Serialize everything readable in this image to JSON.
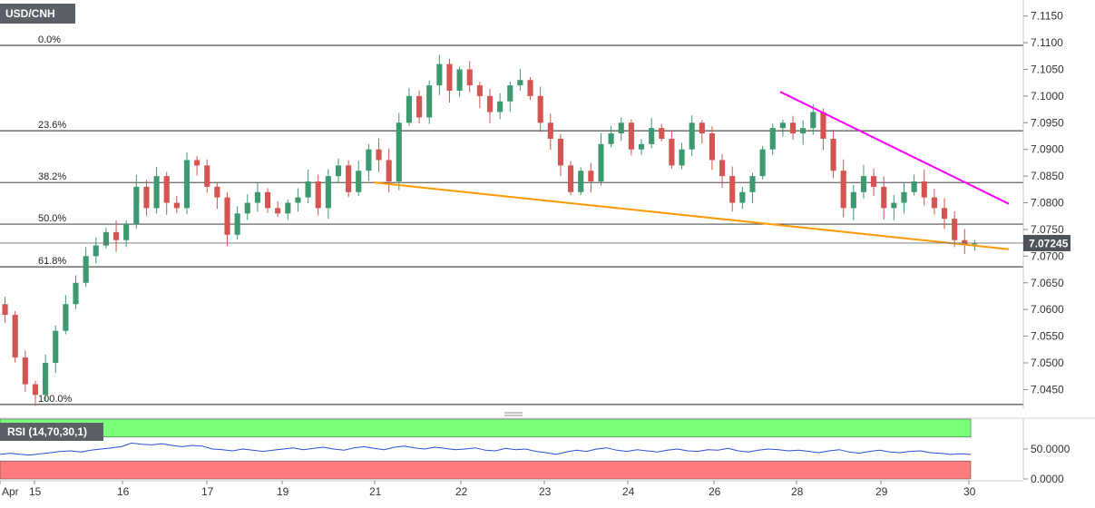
{
  "chart_data": [
    {
      "type": "candlestick",
      "symbol": "USD/CNH",
      "last_price": "7.07245",
      "y_axis_ticks": [
        "7.1150",
        "7.1100",
        "7.1050",
        "7.1000",
        "7.0950",
        "7.0900",
        "7.0850",
        "7.0800",
        "7.0750",
        "7.0700",
        "7.0650",
        "7.0600",
        "7.0550",
        "7.0500",
        "7.0450"
      ],
      "ylim": [
        7.0415,
        7.118
      ],
      "x_ticks": [
        "Apr",
        "15",
        "16",
        "17",
        "19",
        "21",
        "22",
        "23",
        "24",
        "26",
        "28",
        "29",
        "30"
      ],
      "fibonacci": [
        {
          "label": "0.0%",
          "value": 7.1095
        },
        {
          "label": "23.6%",
          "value": 7.0935
        },
        {
          "label": "38.2%",
          "value": 7.0838
        },
        {
          "label": "50.0%",
          "value": 7.076
        },
        {
          "label": "61.8%",
          "value": 7.068
        },
        {
          "label": "100.0%",
          "value": 7.0422
        }
      ],
      "trendlines": [
        {
          "color": "#ff9900",
          "from": {
            "day": "21",
            "value": 7.0838
          },
          "to": {
            "day": "30+",
            "value": 7.0713
          }
        },
        {
          "color": "#ff00ff",
          "from": {
            "day": "27-28",
            "value": 7.1008
          },
          "to": {
            "day": "30+",
            "value": 7.0798
          }
        }
      ],
      "ohlc_close_path": [
        7.059,
        7.051,
        7.046,
        7.044,
        7.05,
        7.056,
        7.061,
        7.065,
        7.07,
        7.072,
        7.0745,
        7.073,
        7.076,
        7.083,
        7.079,
        7.085,
        7.08,
        7.079,
        7.088,
        7.087,
        7.083,
        7.081,
        7.074,
        7.078,
        7.08,
        7.082,
        7.079,
        7.078,
        7.08,
        7.081,
        7.084,
        7.079,
        7.085,
        7.087,
        7.082,
        7.086,
        7.09,
        7.088,
        7.084,
        7.095,
        7.1,
        7.096,
        7.102,
        7.106,
        7.101,
        7.105,
        7.102,
        7.1,
        7.097,
        7.099,
        7.102,
        7.103,
        7.1,
        7.095,
        7.092,
        7.087,
        7.082,
        7.086,
        7.084,
        7.091,
        7.093,
        7.095,
        7.09,
        7.091,
        7.094,
        7.092,
        7.087,
        7.09,
        7.095,
        7.093,
        7.088,
        7.085,
        7.08,
        7.082,
        7.085,
        7.09,
        7.094,
        7.095,
        7.093,
        7.094,
        7.097,
        7.092,
        7.086,
        7.079,
        7.082,
        7.085,
        7.083,
        7.079,
        7.08,
        7.082,
        7.084,
        7.081,
        7.079,
        7.077,
        7.073,
        7.0722,
        7.0724
      ]
    },
    {
      "type": "line",
      "indicator": "RSI (14,70,30,1)",
      "y_axis_ticks": [
        "50.0000",
        "0.0000"
      ],
      "levels": {
        "overbought": 70,
        "oversold": 30
      },
      "ylim": [
        0,
        100
      ],
      "series": [
        {
          "values": [
            41,
            43,
            41,
            40,
            42,
            44,
            46,
            47,
            45,
            48,
            50,
            52,
            54,
            60,
            58,
            57,
            59,
            56,
            54,
            56,
            55,
            50,
            49,
            47,
            50,
            48,
            46,
            48,
            50,
            52,
            49,
            51,
            53,
            50,
            48,
            52,
            54,
            51,
            49,
            53,
            55,
            52,
            50,
            53,
            51,
            49,
            50,
            52,
            48,
            47,
            51,
            49,
            50,
            46,
            44,
            41,
            45,
            48,
            46,
            50,
            52,
            48,
            46,
            49,
            47,
            45,
            48,
            50,
            47,
            46,
            49,
            48,
            51,
            47,
            45,
            48,
            50,
            49,
            47,
            48,
            46,
            44,
            47,
            49,
            45,
            43,
            46,
            48,
            45,
            44,
            46,
            47,
            44,
            43,
            41,
            42,
            41
          ]
        }
      ]
    }
  ]
}
